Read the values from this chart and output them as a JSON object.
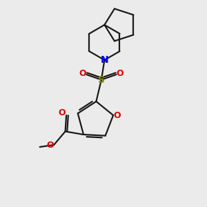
{
  "bg_color": "#ebebeb",
  "bond_color": "#1a1a1a",
  "N_color": "#0000ee",
  "O_color": "#dd0000",
  "S_color": "#888800",
  "figsize": [
    3.0,
    3.0
  ],
  "dpi": 100,
  "xlim": [
    0,
    10
  ],
  "ylim": [
    0,
    10
  ]
}
